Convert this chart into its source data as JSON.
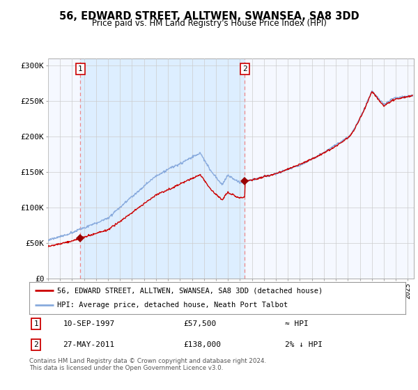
{
  "title": "56, EDWARD STREET, ALLTWEN, SWANSEA, SA8 3DD",
  "subtitle": "Price paid vs. HM Land Registry's House Price Index (HPI)",
  "ylabel_ticks": [
    "£0",
    "£50K",
    "£100K",
    "£150K",
    "£200K",
    "£250K",
    "£300K"
  ],
  "ytick_values": [
    0,
    50000,
    100000,
    150000,
    200000,
    250000,
    300000
  ],
  "ylim": [
    0,
    310000
  ],
  "xlim_start": 1995.0,
  "xlim_end": 2025.5,
  "sale1_date": 1997.69,
  "sale1_price": 57500,
  "sale1_label": "1",
  "sale2_date": 2011.4,
  "sale2_price": 138000,
  "sale2_label": "2",
  "line_color_price": "#cc0000",
  "line_color_hpi": "#88aadd",
  "marker_color": "#990000",
  "dashed_color": "#ee8888",
  "shade_color": "#ddeeff",
  "legend_label1": "56, EDWARD STREET, ALLTWEN, SWANSEA, SA8 3DD (detached house)",
  "legend_label2": "HPI: Average price, detached house, Neath Port Talbot",
  "note1_num": "1",
  "note1_date": "10-SEP-1997",
  "note1_price": "£57,500",
  "note1_rel": "≈ HPI",
  "note2_num": "2",
  "note2_date": "27-MAY-2011",
  "note2_price": "£138,000",
  "note2_rel": "2% ↓ HPI",
  "footer": "Contains HM Land Registry data © Crown copyright and database right 2024.\nThis data is licensed under the Open Government Licence v3.0.",
  "bg_color": "#ffffff",
  "plot_bg_color": "#f5f8ff",
  "grid_color": "#cccccc"
}
